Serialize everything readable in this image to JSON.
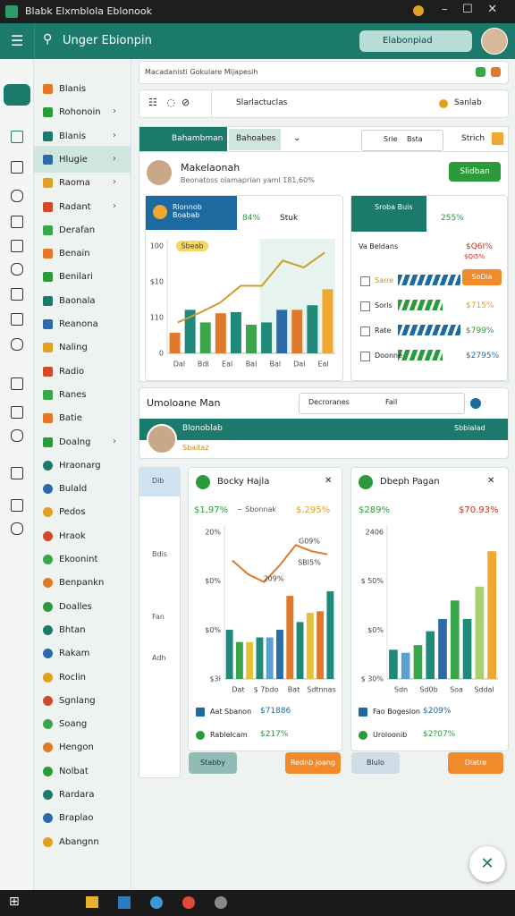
{
  "window": {
    "title": "Blabk Elxmblola Eblonook"
  },
  "header": {
    "search": "Unger Ebionpin",
    "button": "Elabonpiad"
  },
  "sidebar": [
    "Blanis",
    "Rohonoin",
    "Blanis",
    "Hlugie",
    "Raoma",
    "Radant",
    "Derafan",
    "Benain",
    "Benilari",
    "Baonala",
    "Reanona",
    "Naling",
    "Radio",
    "Ranes",
    "Batie",
    "Doalng",
    "Hraonarg",
    "Bulald",
    "Pedos",
    "Hraok",
    "Ekoonint",
    "Benpankn",
    "Doalles",
    "Bhtan",
    "Rakam",
    "Roclin",
    "Sgnlang",
    "Soang",
    "Hengon",
    "Nolbat",
    "Rardara",
    "Braplao",
    "Abangnn"
  ],
  "breadcrumb": "Macadanisti Gokulare Mijapesih",
  "toolbar": {
    "search": "Slarlactuclas",
    "action": "Sanlab"
  },
  "tabs": [
    "Bahambman",
    "Bahoabes"
  ],
  "tab_actions": [
    "Srie",
    "Bsta",
    "Strich"
  ],
  "profile": {
    "name": "Makelaonah",
    "subtitle": "Beonatoss olamaprian yaml 181,60%",
    "button": "Slidban"
  },
  "stats_panel": {
    "title": "Rlonnob Boabab",
    "badge": "84%",
    "link": "Stuk",
    "tag": "Sbeab",
    "ylabels": [
      "100",
      "$10",
      "110",
      "0"
    ],
    "xlabels": [
      "Dal",
      "Bdl",
      "Eal",
      "Bal",
      "Bal",
      "Dal",
      "Eal"
    ],
    "bars": [
      {
        "color": "#e07a2a",
        "value": 18
      },
      {
        "color": "#1f8a7a",
        "value": 38
      },
      {
        "color": "#3aa64a",
        "value": 27
      },
      {
        "color": "#e07a2a",
        "value": 35
      },
      {
        "color": "#1f8a7a",
        "value": 36
      },
      {
        "color": "#3aa64a",
        "value": 25
      },
      {
        "color": "#1f8a7a",
        "value": 27
      },
      {
        "color": "#2c6aa8",
        "value": 38
      },
      {
        "color": "#e07a2a",
        "value": 38
      },
      {
        "color": "#1f8a7a",
        "value": 42
      },
      {
        "color": "#f0a830",
        "value": 56
      }
    ],
    "line": {
      "color": "#c9a030",
      "values": [
        27,
        35,
        44,
        59,
        59,
        81,
        75,
        88
      ]
    }
  },
  "side_panel": {
    "title": "Sroba Buis",
    "badge": "255%",
    "rows": [
      {
        "label": "Va Beldans",
        "value": "$Q6I%"
      },
      {
        "label": "Sarre",
        "value": "$979%"
      },
      {
        "label": "Sorls",
        "value": "$715%"
      },
      {
        "label": "Rate",
        "value": "$799%"
      },
      {
        "label": "Doonne",
        "value": "$2795%"
      }
    ],
    "sub": "$QI5%",
    "button": "SoDia"
  },
  "section": {
    "title": "Umoloane Man",
    "input": "Decroranes",
    "filter": "Fail",
    "bar": "Blonoblab",
    "bar_sub": "Sbaitaz",
    "dropdown": "Sbbialad"
  },
  "nav_panel": [
    "Dib",
    "Bdis",
    "Fan",
    "Adh"
  ],
  "card1": {
    "title": "Bocky Hajla",
    "stats": [
      "$1,97%",
      "~ Sbonnak",
      "$,295%"
    ],
    "ylabels": [
      "20%",
      "$0%",
      "$0%",
      "$3I"
    ],
    "xlabels": [
      "Dat",
      "$ 7bdo",
      "Bat",
      "Sdtnnas"
    ],
    "notes": [
      "G09%",
      "SBI5%",
      "209%"
    ],
    "bars": [
      {
        "color": "#1f8a7a",
        "value": 32
      },
      {
        "color": "#3aa64a",
        "value": 24
      },
      {
        "color": "#e6c03a",
        "value": 24
      },
      {
        "color": "#1f8a7a",
        "value": 27
      },
      {
        "color": "#5aa0d0",
        "value": 27
      },
      {
        "color": "#2c6aa8",
        "value": 32
      },
      {
        "color": "#e07a2a",
        "value": 54
      },
      {
        "color": "#1f8a7a",
        "value": 37
      },
      {
        "color": "#e6c03a",
        "value": 43
      },
      {
        "color": "#e07a2a",
        "value": 44
      },
      {
        "color": "#1f8a7a",
        "value": 57
      }
    ],
    "line": {
      "color": "#e07a2a",
      "values": [
        77,
        68,
        63,
        74,
        87,
        83,
        81
      ]
    },
    "rows": [
      {
        "label": "Aat Sbanon",
        "value": "$71886"
      },
      {
        "label": "Rablelcam",
        "value": "$217%"
      }
    ],
    "buttons": [
      "Stabby",
      "Rednb joang"
    ]
  },
  "card2": {
    "title": "Dbeph Pagan",
    "stats": [
      "$289%",
      "$70.93%"
    ],
    "ylabels": [
      "2406",
      "$ 50%",
      "$0%",
      "$ 30%"
    ],
    "xlabels": [
      "Sdn",
      "Sd0b",
      "Soa",
      "Sddal"
    ],
    "bars": [
      {
        "color": "#1f8a7a",
        "value": 19
      },
      {
        "color": "#5aa0d0",
        "value": 17
      },
      {
        "color": "#3aa64a",
        "value": 22
      },
      {
        "color": "#1f8a7a",
        "value": 31
      },
      {
        "color": "#2c6aa8",
        "value": 39
      },
      {
        "color": "#3aa64a",
        "value": 51
      },
      {
        "color": "#1f8a7a",
        "value": 39
      },
      {
        "color": "#a8d070",
        "value": 60
      },
      {
        "color": "#f0a830",
        "value": 83
      }
    ],
    "rows": [
      {
        "label": "Fao Bogeslon",
        "value": "$209%"
      },
      {
        "label": "Uroloonib",
        "value": "$2?07%"
      }
    ],
    "buttons": [
      "Blulo",
      "Diatre"
    ]
  }
}
